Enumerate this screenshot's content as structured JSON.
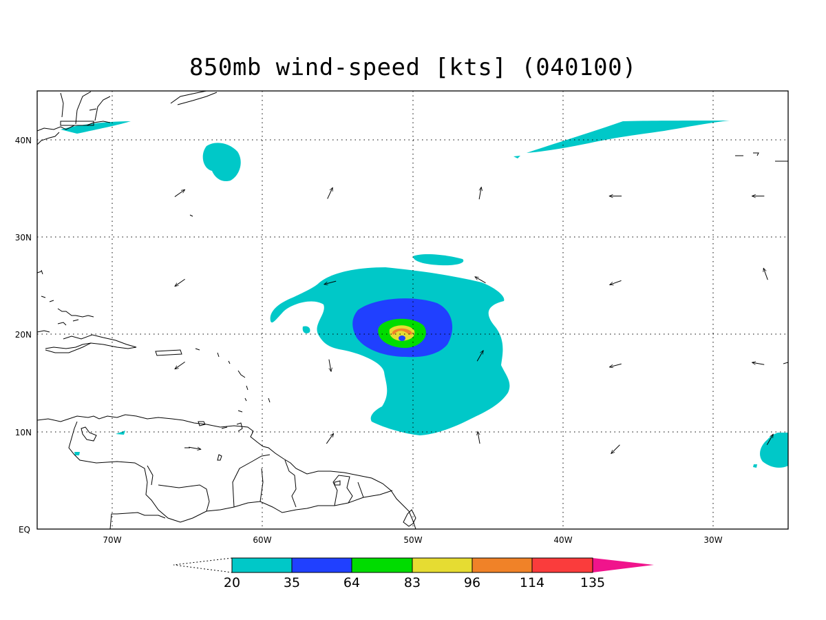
{
  "title": "850mb wind-speed [kts] (040100)",
  "map": {
    "lon_range": [
      -75,
      -25
    ],
    "lat_range": [
      0,
      45
    ],
    "lon_ticks": [
      {
        "value": -70,
        "label": "70W"
      },
      {
        "value": -60,
        "label": "60W"
      },
      {
        "value": -50,
        "label": "50W"
      },
      {
        "value": -40,
        "label": "40W"
      },
      {
        "value": -30,
        "label": "30W"
      }
    ],
    "lat_ticks": [
      {
        "value": 0,
        "label": "EQ"
      },
      {
        "value": 10,
        "label": "10N"
      },
      {
        "value": 20,
        "label": "20N"
      },
      {
        "value": 30,
        "label": "30N"
      },
      {
        "value": 40,
        "label": "40N"
      }
    ],
    "grid": true,
    "grid_style": "dotted"
  },
  "colorbar": {
    "levels": [
      "20",
      "35",
      "64",
      "83",
      "96",
      "114",
      "135"
    ],
    "colors": [
      "#00c8c8",
      "#2040ff",
      "#00dc00",
      "#e6dc32",
      "#f08228",
      "#fa3c3c",
      "#f0148c"
    ],
    "below_color": "#ffffff"
  },
  "storm_center": {
    "lon": -50.7,
    "lat": 19.8
  },
  "wind_vectors": [
    {
      "lon": -65.5,
      "lat": 34.5,
      "dir_deg": 35
    },
    {
      "lon": -55.5,
      "lat": 34.5,
      "dir_deg": 65
    },
    {
      "lon": -45.5,
      "lat": 34.5,
      "dir_deg": 80
    },
    {
      "lon": -36.5,
      "lat": 34.2,
      "dir_deg": 180
    },
    {
      "lon": -27,
      "lat": 34.2,
      "dir_deg": 180
    },
    {
      "lon": -65.5,
      "lat": 25.3,
      "dir_deg": 215
    },
    {
      "lon": -55.5,
      "lat": 25.3,
      "dir_deg": 195
    },
    {
      "lon": -45.5,
      "lat": 25.6,
      "dir_deg": 150
    },
    {
      "lon": -36.5,
      "lat": 25.3,
      "dir_deg": 200
    },
    {
      "lon": -26.5,
      "lat": 26.2,
      "dir_deg": 110
    },
    {
      "lon": -65.5,
      "lat": 16.8,
      "dir_deg": 215
    },
    {
      "lon": -55.5,
      "lat": 16.8,
      "dir_deg": 280
    },
    {
      "lon": -45.5,
      "lat": 17.8,
      "dir_deg": 60
    },
    {
      "lon": -36.5,
      "lat": 16.8,
      "dir_deg": 195
    },
    {
      "lon": -27,
      "lat": 17,
      "dir_deg": 170
    },
    {
      "lon": -64.5,
      "lat": 8.3,
      "dir_deg": 350
    },
    {
      "lon": -55.5,
      "lat": 9.3,
      "dir_deg": 55
    },
    {
      "lon": -45.6,
      "lat": 9.4,
      "dir_deg": 100
    },
    {
      "lon": -36.5,
      "lat": 8.2,
      "dir_deg": 225
    },
    {
      "lon": -26.2,
      "lat": 9.2,
      "dir_deg": 60
    }
  ]
}
